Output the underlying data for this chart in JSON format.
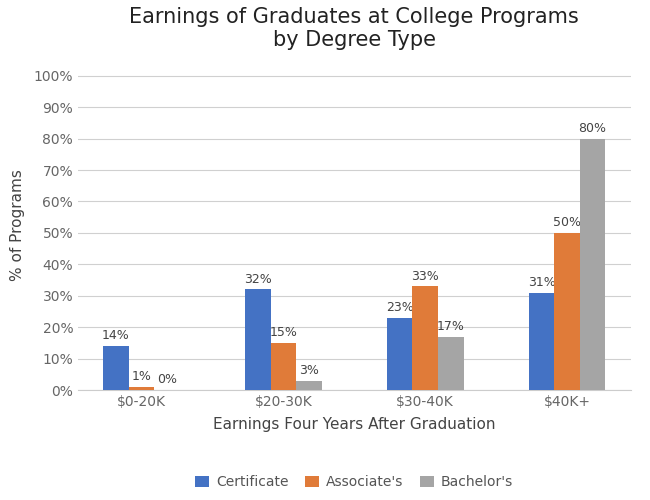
{
  "title": "Earnings of Graduates at College Programs\nby Degree Type",
  "xlabel": "Earnings Four Years After Graduation",
  "ylabel": "% of Programs",
  "categories": [
    "$0-20K",
    "$20-30K",
    "$30-40K",
    "$40K+"
  ],
  "series": {
    "Certificate": [
      14,
      32,
      23,
      31
    ],
    "Associate's": [
      1,
      15,
      33,
      50
    ],
    "Bachelor's": [
      0,
      3,
      17,
      80
    ]
  },
  "colors": {
    "Certificate": "#4472C4",
    "Associate's": "#E07B39",
    "Bachelor's": "#A5A5A5"
  },
  "ylim": [
    0,
    105
  ],
  "yticks": [
    0,
    10,
    20,
    30,
    40,
    50,
    60,
    70,
    80,
    90,
    100
  ],
  "ytick_labels": [
    "0%",
    "10%",
    "20%",
    "30%",
    "40%",
    "50%",
    "60%",
    "70%",
    "80%",
    "90%",
    "100%"
  ],
  "bar_width": 0.18,
  "title_fontsize": 15,
  "axis_label_fontsize": 11,
  "tick_fontsize": 10,
  "legend_fontsize": 10,
  "annotation_fontsize": 9,
  "background_color": "#ffffff",
  "grid_color": "#d0d0d0"
}
